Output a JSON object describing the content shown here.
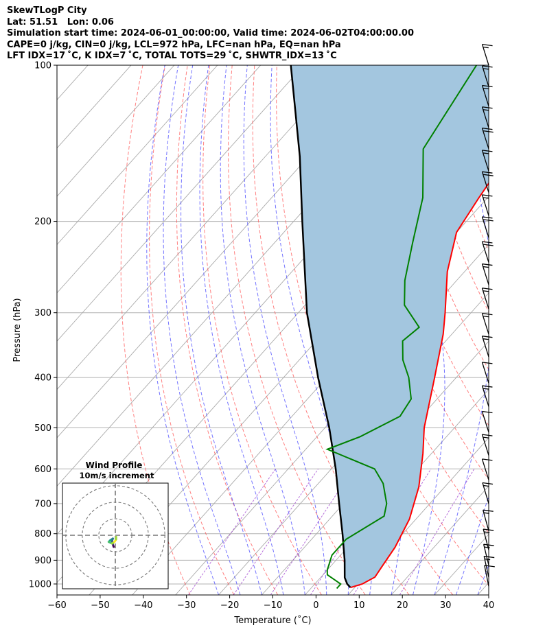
{
  "title": {
    "line1": "SkewTLogP City",
    "line2": "Lat: 51.51   Lon: 0.06",
    "line3": "Simulation start time: 2024-06-01_00:00:00, Valid time: 2024-06-02T04:00:00.00",
    "line4": "CAPE=0 j/kg, CIN=0 j/kg, LCL=972 hPa, LFC=nan hPa, EQ=nan hPa",
    "line5": "LFT IDX=17 ˚C, K IDX=7 ˚C, TOTAL TOTS=29 ˚C, SHWTR_IDX=13 ˚C"
  },
  "chart_data": {
    "type": "skewt",
    "xlabel": "Temperature (˚C)",
    "ylabel": "Pressure (hPa)",
    "xlim": [
      -60,
      40
    ],
    "ylim": [
      1050,
      100
    ],
    "x_ticks": [
      -60,
      -50,
      -40,
      -30,
      -20,
      -10,
      0,
      10,
      20,
      30,
      40
    ],
    "y_ticks": [
      100,
      200,
      300,
      400,
      500,
      600,
      700,
      800,
      900,
      1000
    ],
    "y_scale": "log",
    "grid": true,
    "colors": {
      "temperature": "#ff0000",
      "dewpoint": "#008000",
      "parcel": "#000000",
      "shade": "#a3c6df",
      "dry_adiabats": "#ff5555",
      "moist_adiabats": "#4444ff",
      "mixing_ratio": "#9933cc",
      "isotherms": "#999999"
    },
    "temperature": [
      {
        "p": 1016,
        "t": 9
      },
      {
        "p": 1000,
        "t": 11
      },
      {
        "p": 970,
        "t": 12.5
      },
      {
        "p": 930,
        "t": 12
      },
      {
        "p": 850,
        "t": 11
      },
      {
        "p": 750,
        "t": 8.5
      },
      {
        "p": 650,
        "t": 4
      },
      {
        "p": 560,
        "t": -2
      },
      {
        "p": 500,
        "t": -7
      },
      {
        "p": 400,
        "t": -15
      },
      {
        "p": 330,
        "t": -22
      },
      {
        "p": 300,
        "t": -26
      },
      {
        "p": 250,
        "t": -34
      },
      {
        "p": 210,
        "t": -40
      },
      {
        "p": 180,
        "t": -42
      },
      {
        "p": 150,
        "t": -44
      },
      {
        "p": 130,
        "t": -48
      },
      {
        "p": 100,
        "t": -55
      }
    ],
    "dewpoint": [
      {
        "p": 1020,
        "t": 6
      },
      {
        "p": 1000,
        "t": 6
      },
      {
        "p": 960,
        "t": 1
      },
      {
        "p": 940,
        "t": 0
      },
      {
        "p": 880,
        "t": -2
      },
      {
        "p": 820,
        "t": -2
      },
      {
        "p": 740,
        "t": 2
      },
      {
        "p": 700,
        "t": 0
      },
      {
        "p": 640,
        "t": -5
      },
      {
        "p": 600,
        "t": -10
      },
      {
        "p": 550,
        "t": -25
      },
      {
        "p": 520,
        "t": -20
      },
      {
        "p": 475,
        "t": -15
      },
      {
        "p": 440,
        "t": -16
      },
      {
        "p": 400,
        "t": -21
      },
      {
        "p": 370,
        "t": -26
      },
      {
        "p": 340,
        "t": -30
      },
      {
        "p": 320,
        "t": -29
      },
      {
        "p": 290,
        "t": -37
      },
      {
        "p": 260,
        "t": -42
      },
      {
        "p": 220,
        "t": -48
      },
      {
        "p": 180,
        "t": -55
      },
      {
        "p": 145,
        "t": -65
      },
      {
        "p": 100,
        "t": -70
      }
    ],
    "parcel": [
      {
        "p": 1016,
        "t": 9
      },
      {
        "p": 1000,
        "t": 7.5
      },
      {
        "p": 972,
        "t": 5.6
      },
      {
        "p": 900,
        "t": 2
      },
      {
        "p": 800,
        "t": -4
      },
      {
        "p": 700,
        "t": -11
      },
      {
        "p": 600,
        "t": -19
      },
      {
        "p": 500,
        "t": -29
      },
      {
        "p": 400,
        "t": -42
      },
      {
        "p": 300,
        "t": -58
      },
      {
        "p": 250,
        "t": -67
      },
      {
        "p": 200,
        "t": -78
      },
      {
        "p": 150,
        "t": -92
      },
      {
        "p": 100,
        "t": -113
      }
    ],
    "wind_barbs": [
      {
        "p": 100,
        "speed_kt": 15,
        "dir_deg": 260
      },
      {
        "p": 110,
        "speed_kt": 15,
        "dir_deg": 260
      },
      {
        "p": 120,
        "speed_kt": 15,
        "dir_deg": 260
      },
      {
        "p": 132,
        "speed_kt": 15,
        "dir_deg": 260
      },
      {
        "p": 145,
        "speed_kt": 20,
        "dir_deg": 265
      },
      {
        "p": 160,
        "speed_kt": 15,
        "dir_deg": 265
      },
      {
        "p": 176,
        "speed_kt": 20,
        "dir_deg": 265
      },
      {
        "p": 195,
        "speed_kt": 15,
        "dir_deg": 265
      },
      {
        "p": 215,
        "speed_kt": 20,
        "dir_deg": 265
      },
      {
        "p": 240,
        "speed_kt": 20,
        "dir_deg": 265
      },
      {
        "p": 265,
        "speed_kt": 15,
        "dir_deg": 265
      },
      {
        "p": 295,
        "speed_kt": 15,
        "dir_deg": 265
      },
      {
        "p": 330,
        "speed_kt": 15,
        "dir_deg": 265
      },
      {
        "p": 365,
        "speed_kt": 15,
        "dir_deg": 265
      },
      {
        "p": 410,
        "speed_kt": 10,
        "dir_deg": 265
      },
      {
        "p": 455,
        "speed_kt": 15,
        "dir_deg": 265
      },
      {
        "p": 510,
        "speed_kt": 10,
        "dir_deg": 265
      },
      {
        "p": 565,
        "speed_kt": 15,
        "dir_deg": 265
      },
      {
        "p": 630,
        "speed_kt": 10,
        "dir_deg": 265
      },
      {
        "p": 700,
        "speed_kt": 15,
        "dir_deg": 250
      },
      {
        "p": 790,
        "speed_kt": 15,
        "dir_deg": 240
      },
      {
        "p": 860,
        "speed_kt": 15,
        "dir_deg": 235
      },
      {
        "p": 920,
        "speed_kt": 15,
        "dir_deg": 230
      },
      {
        "p": 970,
        "speed_kt": 15,
        "dir_deg": 225
      },
      {
        "p": 1010,
        "speed_kt": 10,
        "dir_deg": 220
      }
    ],
    "hodograph": {
      "title": "Wind Profile",
      "subtitle": "10m/s increment",
      "rings_ms": [
        10,
        20,
        30
      ],
      "range_ms": 40,
      "points": [
        {
          "u": -1,
          "v": -7
        },
        {
          "u": -1.5,
          "v": -5.5
        },
        {
          "u": -2,
          "v": -3.5
        },
        {
          "u": -1.5,
          "v": -2
        },
        {
          "u": -3,
          "v": -3
        },
        {
          "u": -4,
          "v": -4
        },
        {
          "u": -2,
          "v": -5
        },
        {
          "u": -0.5,
          "v": -4
        },
        {
          "u": 0.5,
          "v": -2.5
        },
        {
          "u": 0.5,
          "v": -1
        }
      ]
    }
  }
}
